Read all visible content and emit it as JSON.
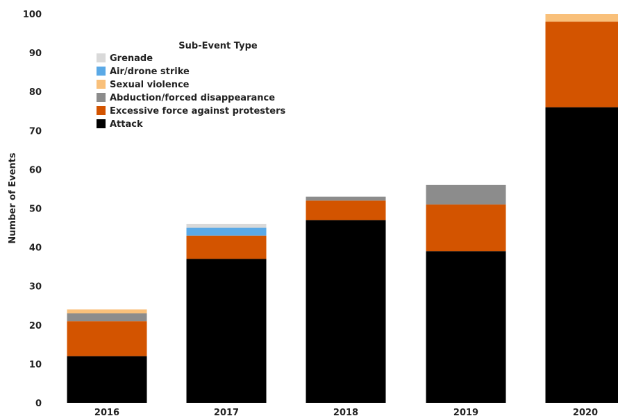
{
  "chart_data": {
    "type": "bar",
    "stacked": true,
    "categories": [
      "2016",
      "2017",
      "2018",
      "2019",
      "2020"
    ],
    "ylabel": "Number of Events",
    "xlabel": "",
    "ylim": [
      0,
      100
    ],
    "yticks": [
      0,
      10,
      20,
      30,
      40,
      50,
      60,
      70,
      80,
      90,
      100
    ],
    "grid": false,
    "legend_title": "Sub-Event Type",
    "legend_position": "top-left",
    "series": [
      {
        "name": "Attack",
        "color": "#000000",
        "values": [
          12,
          37,
          47,
          39,
          76
        ]
      },
      {
        "name": "Excessive force against protesters",
        "color": "#d35400",
        "values": [
          9,
          6,
          5,
          12,
          22
        ]
      },
      {
        "name": "Abduction/forced disappearance",
        "color": "#8c8c8c",
        "values": [
          2,
          0,
          1,
          5,
          0
        ]
      },
      {
        "name": "Sexual violence",
        "color": "#f9c07a",
        "values": [
          1,
          0,
          0,
          0,
          2
        ]
      },
      {
        "name": "Air/drone strike",
        "color": "#5aa9e6",
        "values": [
          0,
          2,
          0,
          0,
          0
        ]
      },
      {
        "name": "Grenade",
        "color": "#d9d9d9",
        "values": [
          0,
          1,
          0,
          0,
          0
        ]
      }
    ],
    "legend_order": [
      "Grenade",
      "Air/drone strike",
      "Sexual violence",
      "Abduction/forced disappearance",
      "Excessive force against protesters",
      "Attack"
    ]
  }
}
